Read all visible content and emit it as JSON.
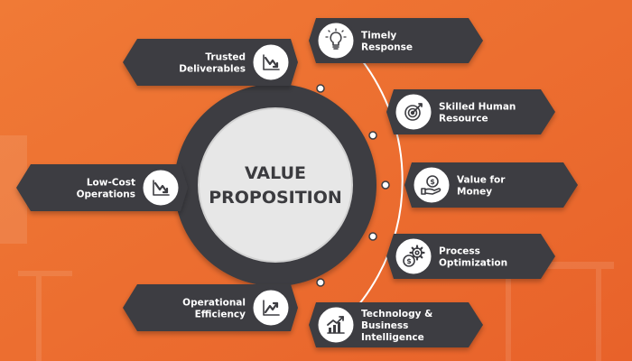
{
  "center": {
    "line1": "VALUE",
    "line2": "PROPOSITION"
  },
  "colors": {
    "background": "#ee6b2a",
    "pill": "#3d3d42",
    "ring": "#ffffff",
    "hub_outer": "#3d3d42",
    "hub_inner": "#e7e7e7",
    "icon": "#3d3d42"
  },
  "left_items": [
    {
      "lines": [
        "Trusted",
        "Deliverables"
      ],
      "icon": "trend-down-icon"
    },
    {
      "lines": [
        "Low-Cost",
        "Operations"
      ],
      "icon": "trend-down-icon"
    },
    {
      "lines": [
        "Operational",
        "Efficiency"
      ],
      "icon": "trend-up-icon"
    }
  ],
  "right_items": [
    {
      "lines": [
        "Timely",
        "Response"
      ],
      "icon": "lightbulb-icon"
    },
    {
      "lines": [
        "Skilled Human",
        "Resource"
      ],
      "icon": "target-icon"
    },
    {
      "lines": [
        "Value for",
        "Money"
      ],
      "icon": "money-hand-icon"
    },
    {
      "lines": [
        "Process",
        "Optimization"
      ],
      "icon": "gear-dollar-icon"
    },
    {
      "lines": [
        "Technology &",
        "Business",
        "Intelligence"
      ],
      "icon": "growth-chart-icon"
    }
  ]
}
